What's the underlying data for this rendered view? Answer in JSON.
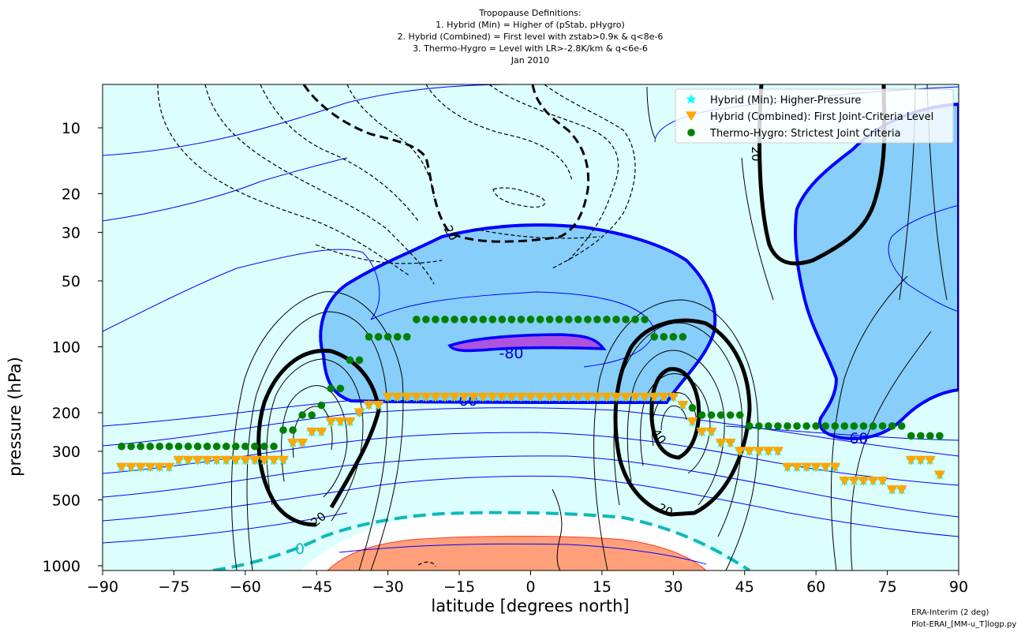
{
  "chart_data": {
    "type": "contour",
    "title_lines": [
      "Tropopause Definitions:",
      "1. Hybrid (Min) = Higher of (pStab, pHygro)",
      "2. Hybrid (Combined) = First level with zstab>0.9κ & q<8e-6",
      "3. Thermo-Hygro = Level with LR>-2.8K/km & q<6e-6",
      "Jan 2010"
    ],
    "xlabel": "latitude [degrees north]",
    "ylabel": "pressure (hPa)",
    "xlim": [
      -90,
      90
    ],
    "ylim": [
      1000,
      6
    ],
    "yscale": "log",
    "xticks": [
      -90,
      -75,
      -60,
      -45,
      -30,
      -15,
      0,
      15,
      30,
      45,
      60,
      75,
      90
    ],
    "xtick_labels": [
      "−90",
      "−75",
      "−60",
      "−45",
      "−30",
      "−15",
      "0",
      "15",
      "30",
      "45",
      "60",
      "75",
      "90"
    ],
    "yticks": [
      10,
      20,
      30,
      50,
      100,
      200,
      300,
      500,
      1000
    ],
    "ytick_labels": [
      "10",
      "20",
      "30",
      "50",
      "100",
      "200",
      "300",
      "500",
      "1000"
    ],
    "legend_position": "upper right",
    "legend": [
      {
        "label": "Hybrid (Min): Higher-Pressure",
        "marker": "star",
        "color": "#00ffff"
      },
      {
        "label": "Hybrid (Combined): First Joint-Criteria Level",
        "marker": "triangle-down",
        "color": "#ffa500"
      },
      {
        "label": "Thermo-Hygro: Strictest Joint Criteria",
        "marker": "circle",
        "color": "#008000"
      }
    ],
    "contour_labels": [
      {
        "text": "-80",
        "lat": -4,
        "p": 105,
        "color": "blue"
      },
      {
        "text": "-60",
        "lat": -17,
        "p": 165,
        "color": "blue"
      },
      {
        "text": "-60",
        "lat": 73,
        "p": 243,
        "color": "blue"
      },
      {
        "text": "0",
        "lat": -51,
        "p": 860,
        "color": "cyan"
      },
      {
        "text": "20",
        "lat": -12,
        "p": 27,
        "color": "black"
      },
      {
        "text": "20",
        "lat": 65,
        "p": 14,
        "color": "black"
      },
      {
        "text": "20",
        "lat": -45,
        "p": 650,
        "color": "black"
      },
      {
        "text": "20",
        "lat": 25,
        "p": 580,
        "color": "black"
      },
      {
        "text": "40",
        "lat": 21,
        "p": 240,
        "color": "black"
      }
    ],
    "series": [
      {
        "name": "Hybrid (Min): Higher-Pressure",
        "marker": "star",
        "color": "#00ffff",
        "lat": [
          -86,
          -84,
          -82,
          -80,
          -78,
          -76,
          -74,
          -72,
          -70,
          -68,
          -66,
          -64,
          -62,
          -60,
          -58,
          -56,
          -54,
          -52,
          -50,
          -48,
          -46,
          -44,
          -42,
          -40,
          -38,
          -36,
          -34,
          -32,
          -30,
          -28,
          -26,
          -24,
          -22,
          -20,
          -18,
          -16,
          -14,
          -12,
          -10,
          -8,
          -6,
          -4,
          -2,
          0,
          2,
          4,
          6,
          8,
          10,
          12,
          14,
          16,
          18,
          20,
          22,
          24,
          26,
          28,
          30,
          32,
          34,
          36,
          38,
          40,
          42,
          44,
          46,
          48,
          50,
          52,
          54,
          56,
          58,
          60,
          62,
          64,
          66,
          68,
          70,
          72,
          74,
          76,
          78,
          80,
          82,
          84,
          86
        ],
        "p": [
          355,
          355,
          355,
          355,
          355,
          355,
          330,
          330,
          330,
          330,
          330,
          330,
          330,
          330,
          330,
          330,
          330,
          330,
          275,
          275,
          245,
          245,
          220,
          220,
          220,
          200,
          185,
          185,
          170,
          170,
          170,
          170,
          170,
          170,
          170,
          170,
          170,
          170,
          170,
          170,
          170,
          170,
          170,
          170,
          170,
          170,
          170,
          170,
          170,
          170,
          170,
          170,
          170,
          170,
          170,
          170,
          170,
          170,
          170,
          185,
          220,
          245,
          245,
          275,
          275,
          300,
          300,
          300,
          300,
          300,
          355,
          355,
          355,
          355,
          355,
          355,
          410,
          410,
          410,
          410,
          410,
          450,
          450,
          330,
          330,
          330,
          385,
          385
        ]
      },
      {
        "name": "Hybrid (Combined): First Joint-Criteria Level",
        "marker": "triangle-down",
        "color": "#ffa500",
        "lat": [
          -86,
          -84,
          -82,
          -80,
          -78,
          -76,
          -74,
          -72,
          -70,
          -68,
          -66,
          -64,
          -62,
          -60,
          -58,
          -56,
          -54,
          -52,
          -50,
          -48,
          -46,
          -44,
          -42,
          -40,
          -38,
          -36,
          -34,
          -32,
          -30,
          -28,
          -26,
          -24,
          -22,
          -20,
          -18,
          -16,
          -14,
          -12,
          -10,
          -8,
          -6,
          -4,
          -2,
          0,
          2,
          4,
          6,
          8,
          10,
          12,
          14,
          16,
          18,
          20,
          22,
          24,
          26,
          28,
          30,
          32,
          34,
          36,
          38,
          40,
          42,
          44,
          46,
          48,
          50,
          52,
          54,
          56,
          58,
          60,
          62,
          64,
          66,
          68,
          70,
          72,
          74,
          76,
          78,
          80,
          82,
          84,
          86
        ],
        "p": [
          355,
          355,
          355,
          355,
          355,
          355,
          330,
          330,
          330,
          330,
          330,
          330,
          330,
          330,
          330,
          330,
          330,
          330,
          275,
          275,
          245,
          245,
          220,
          220,
          220,
          200,
          185,
          185,
          170,
          170,
          170,
          170,
          170,
          170,
          170,
          170,
          170,
          170,
          170,
          170,
          170,
          170,
          170,
          170,
          170,
          170,
          170,
          170,
          170,
          170,
          170,
          170,
          170,
          170,
          170,
          170,
          170,
          170,
          170,
          185,
          220,
          245,
          245,
          275,
          275,
          300,
          300,
          300,
          300,
          300,
          355,
          355,
          355,
          355,
          355,
          355,
          410,
          410,
          410,
          410,
          410,
          450,
          450,
          330,
          330,
          330,
          385,
          385
        ]
      },
      {
        "name": "Thermo-Hygro: Strictest Joint Criteria",
        "marker": "circle",
        "color": "#008000",
        "lat": [
          -86,
          -84,
          -82,
          -80,
          -78,
          -76,
          -74,
          -72,
          -70,
          -68,
          -66,
          -64,
          -62,
          -60,
          -58,
          -56,
          -54,
          -52,
          -50,
          -48,
          -46,
          -44,
          -42,
          -40,
          -38,
          -36,
          -34,
          -32,
          -30,
          -28,
          -26,
          -24,
          -22,
          -20,
          -18,
          -16,
          -14,
          -12,
          -10,
          -8,
          -6,
          -4,
          -2,
          0,
          2,
          4,
          6,
          8,
          10,
          12,
          14,
          16,
          18,
          20,
          22,
          24,
          26,
          28,
          30,
          32,
          34,
          36,
          38,
          40,
          42,
          44,
          46,
          48,
          50,
          52,
          54,
          56,
          58,
          60,
          62,
          64,
          66,
          68,
          70,
          72,
          74,
          76,
          78,
          80,
          82,
          84,
          86
        ],
        "p": [
          285,
          285,
          285,
          285,
          285,
          285,
          285,
          285,
          285,
          285,
          285,
          285,
          285,
          285,
          285,
          285,
          285,
          240,
          240,
          205,
          205,
          185,
          155,
          155,
          115,
          115,
          90,
          90,
          90,
          90,
          90,
          75,
          75,
          75,
          75,
          75,
          75,
          75,
          75,
          75,
          75,
          75,
          75,
          75,
          75,
          75,
          75,
          75,
          75,
          75,
          75,
          75,
          75,
          75,
          75,
          75,
          90,
          90,
          90,
          90,
          190,
          205,
          205,
          205,
          205,
          205,
          230,
          230,
          230,
          230,
          230,
          230,
          230,
          230,
          230,
          230,
          230,
          230,
          230,
          230,
          230,
          230,
          230,
          255,
          255,
          255,
          255
        ]
      }
    ],
    "colors": {
      "background": "#dcfffe",
      "fill_cold": "#87cefa",
      "fill_coldest": "#ae52e0",
      "fill_warm": "#ffa07a",
      "temp_contour": "#0000ff",
      "wind_contour": "#000000",
      "zero_contour": "#10b8b8"
    }
  },
  "footer": {
    "line1": "ERA-Interim (2 deg)",
    "line2": "Plot-ERAI_[MM-u_T]logp.py"
  }
}
